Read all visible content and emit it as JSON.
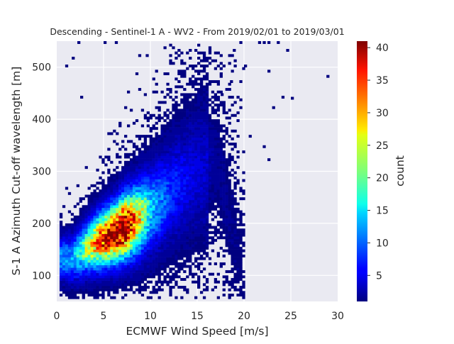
{
  "chart_data": {
    "type": "heatmap",
    "title": "Descending - Sentinel-1 A - WV2 - From 2019/02/01 to 2019/03/01",
    "xlabel": "ECMWF Wind Speed [m/s]",
    "ylabel": "S-1 A Azimuth Cut-off wavelength [m]",
    "xlim": [
      0,
      30
    ],
    "ylim": [
      50,
      550
    ],
    "x_ticks": [
      "0",
      "5",
      "10",
      "15",
      "20",
      "25",
      "30"
    ],
    "y_ticks": [
      "100",
      "200",
      "300",
      "400",
      "500"
    ],
    "x_tick_values": [
      0,
      5,
      10,
      15,
      20,
      25,
      30
    ],
    "y_tick_values": [
      100,
      200,
      300,
      400,
      500
    ],
    "grid": true,
    "colormap": "jet",
    "colorbar": {
      "label": "count",
      "range": [
        1,
        41
      ],
      "ticks": [
        "5",
        "10",
        "15",
        "20",
        "25",
        "30",
        "35",
        "40"
      ],
      "tick_values": [
        5,
        10,
        15,
        20,
        25,
        30,
        35,
        40
      ]
    },
    "density_model": {
      "description": "2D histogram of wind speed vs cut-off wavelength",
      "ridge": [
        {
          "x": 1.5,
          "y_center": 130,
          "peak_count": 10
        },
        {
          "x": 3.0,
          "y_center": 150,
          "peak_count": 20
        },
        {
          "x": 4.5,
          "y_center": 165,
          "peak_count": 32
        },
        {
          "x": 6.0,
          "y_center": 178,
          "peak_count": 38
        },
        {
          "x": 7.0,
          "y_center": 190,
          "peak_count": 41
        },
        {
          "x": 8.5,
          "y_center": 205,
          "peak_count": 26
        },
        {
          "x": 10.0,
          "y_center": 225,
          "peak_count": 12
        },
        {
          "x": 12.0,
          "y_center": 255,
          "peak_count": 6
        },
        {
          "x": 14.0,
          "y_center": 285,
          "peak_count": 3
        },
        {
          "x": 17.0,
          "y_center": 320,
          "peak_count": 1
        }
      ],
      "bin_width_x": 0.3,
      "bin_width_y": 5
    },
    "outliers": [
      [
        0.9,
        500
      ],
      [
        1.6,
        515
      ],
      [
        2.2,
        545
      ],
      [
        5.0,
        545
      ],
      [
        6.2,
        545
      ],
      [
        9.5,
        520
      ],
      [
        18.8,
        530
      ],
      [
        19.5,
        545
      ],
      [
        21.5,
        545
      ],
      [
        22.0,
        545
      ],
      [
        22.5,
        545
      ],
      [
        23.5,
        545
      ],
      [
        24.5,
        530
      ],
      [
        22.5,
        490
      ],
      [
        28.8,
        480
      ],
      [
        18.5,
        470
      ],
      [
        20.0,
        500
      ],
      [
        24.0,
        440
      ],
      [
        25.0,
        438
      ],
      [
        23.0,
        420
      ],
      [
        22.5,
        320
      ],
      [
        22.0,
        345
      ],
      [
        20.5,
        365
      ],
      [
        16.2,
        435
      ],
      [
        17.5,
        445
      ],
      [
        2.5,
        440
      ]
    ]
  }
}
